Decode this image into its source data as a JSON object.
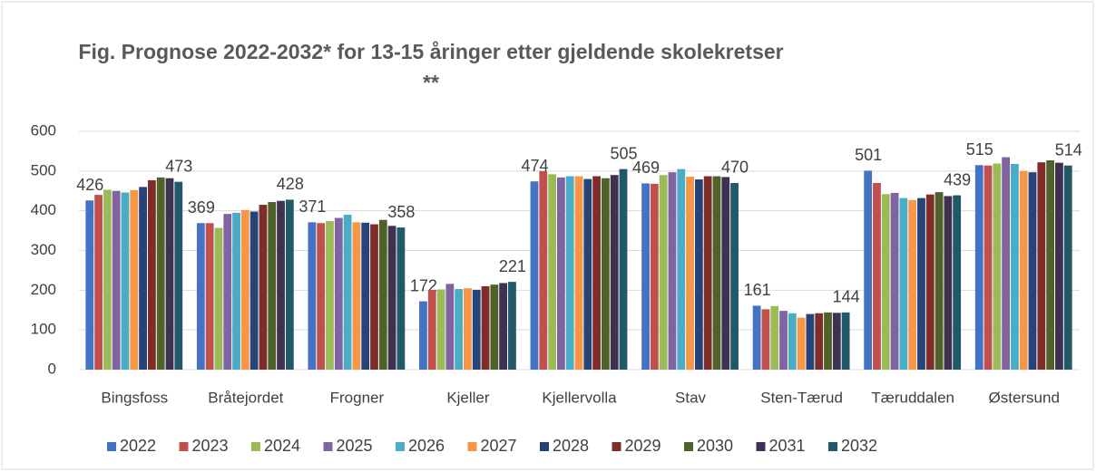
{
  "chart_data": {
    "type": "bar",
    "title": "Fig. Prognose 2022-2032* for 13-15 åringer etter gjeldende skolekretser **",
    "categories": [
      "Bingsfoss",
      "Bråtejordet",
      "Frogner",
      "Kjeller",
      "Kjellervolla",
      "Stav",
      "Sten-Tærud",
      "Tæruddalen",
      "Østersund"
    ],
    "series": [
      {
        "name": "2022",
        "color": "#4472c4",
        "show_labels": true,
        "values": [
          426,
          369,
          371,
          172,
          474,
          469,
          161,
          501,
          515
        ]
      },
      {
        "name": "2023",
        "color": "#c0504d",
        "values": [
          440,
          369,
          369,
          201,
          500,
          468,
          152,
          470,
          514
        ]
      },
      {
        "name": "2024",
        "color": "#9bbb59",
        "values": [
          453,
          357,
          374,
          202,
          492,
          490,
          160,
          442,
          519
        ]
      },
      {
        "name": "2025",
        "color": "#8064a2",
        "values": [
          450,
          392,
          382,
          216,
          484,
          497,
          148,
          445,
          535
        ]
      },
      {
        "name": "2026",
        "color": "#4bacc6",
        "values": [
          446,
          395,
          390,
          203,
          487,
          505,
          142,
          432,
          518
        ]
      },
      {
        "name": "2027",
        "color": "#f79646",
        "values": [
          452,
          402,
          371,
          205,
          487,
          486,
          131,
          427,
          500
        ]
      },
      {
        "name": "2028",
        "color": "#264478",
        "values": [
          460,
          398,
          370,
          201,
          480,
          479,
          140,
          432,
          497
        ]
      },
      {
        "name": "2029",
        "color": "#7f2d2b",
        "values": [
          477,
          415,
          366,
          210,
          487,
          487,
          142,
          441,
          522
        ]
      },
      {
        "name": "2030",
        "color": "#4f6228",
        "values": [
          484,
          422,
          377,
          214,
          482,
          487,
          144,
          447,
          527
        ]
      },
      {
        "name": "2031",
        "color": "#3f3151",
        "values": [
          482,
          425,
          362,
          218,
          490,
          485,
          143,
          437,
          521
        ]
      },
      {
        "name": "2032",
        "color": "#215968",
        "show_labels": true,
        "values": [
          473,
          428,
          358,
          221,
          505,
          470,
          144,
          439,
          514
        ]
      }
    ],
    "ylim": [
      0,
      600
    ],
    "yticks": [
      0,
      100,
      200,
      300,
      400,
      500,
      600
    ],
    "grid": true,
    "legend": "bottom"
  }
}
